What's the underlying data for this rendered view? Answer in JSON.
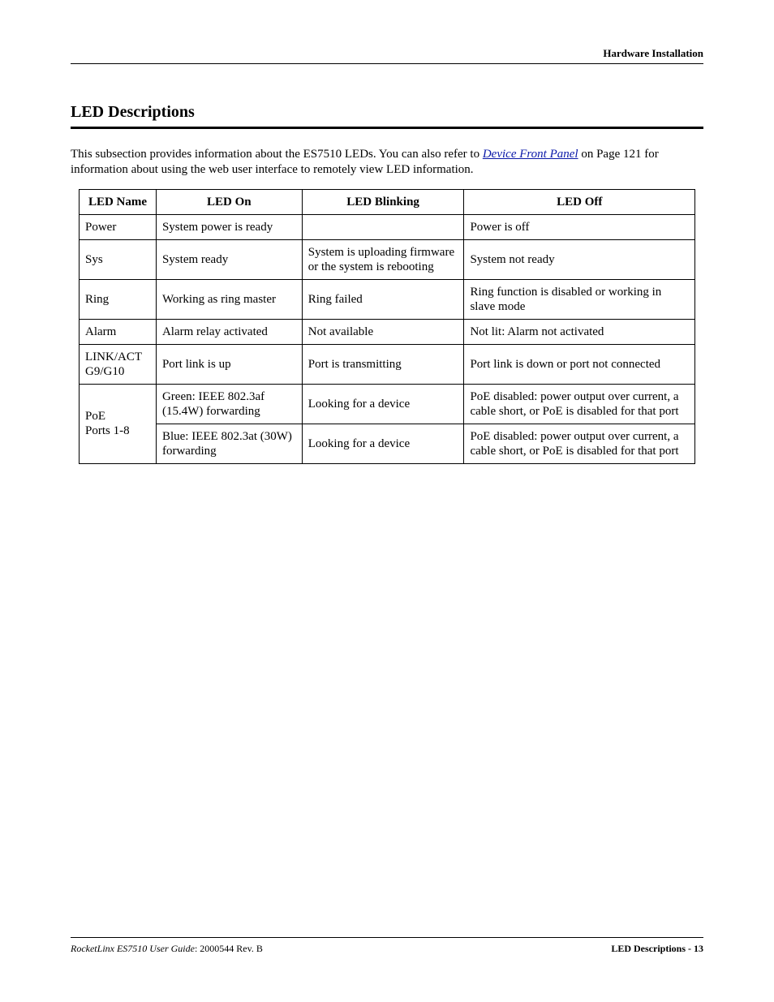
{
  "header": {
    "section": "Hardware Installation"
  },
  "section_title": "LED Descriptions",
  "intro": {
    "pre": "This subsection provides information about the ES7510 LEDs. You can also refer to ",
    "link_text": "Device Front Panel",
    "post": " on Page 121 for information about using the web user interface to remotely view LED information."
  },
  "table": {
    "columns": {
      "name": "LED Name",
      "on": "LED On",
      "blink": "LED Blinking",
      "off": "LED Off"
    },
    "rows": {
      "power": {
        "name": "Power",
        "on": "System power is ready",
        "blink": "",
        "off": "Power is off"
      },
      "sys": {
        "name": "Sys",
        "on": "System ready",
        "blink": "System is uploading firmware or the system is rebooting",
        "off": "System not ready"
      },
      "ring": {
        "name": "Ring",
        "on": "Working as ring master",
        "blink": "Ring failed",
        "off": "Ring function is disabled or working in slave mode"
      },
      "alarm": {
        "name": "Alarm",
        "on": "Alarm relay activated",
        "blink": "Not available",
        "off": "Not lit: Alarm not activated"
      },
      "linkact": {
        "name_l1": "LINK/ACT",
        "name_l2": "G9/G10",
        "on": "Port link is up",
        "blink": "Port is transmitting",
        "off": "Port link is down or port not connected"
      },
      "poe": {
        "name_l1": "PoE",
        "name_l2": "Ports 1-8",
        "r1": {
          "on": "Green: IEEE 802.3af (15.4W) forwarding",
          "blink": "Looking for a device",
          "off": "PoE disabled: power output over current, a cable short, or PoE is disabled for that port"
        },
        "r2": {
          "on": "Blue: IEEE 802.3at (30W) forwarding",
          "blink": "Looking for a device",
          "off": "PoE disabled: power output over current, a cable short, or PoE is disabled for that port"
        }
      }
    }
  },
  "footer": {
    "guide_title": "RocketLinx ES7510  User Guide",
    "doc_rev": ": 2000544 Rev. B",
    "right": "LED Descriptions - 13"
  }
}
